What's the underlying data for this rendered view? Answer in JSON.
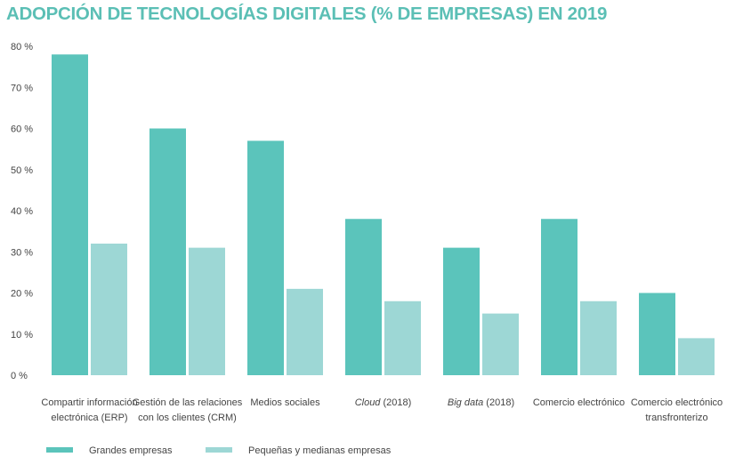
{
  "chart_data": {
    "type": "bar",
    "title": "ADOPCIÓN DE TECNOLOGÍAS DIGITALES (% DE EMPRESAS) EN 2019",
    "xlabel": "",
    "ylabel": "",
    "ylim": [
      0,
      80
    ],
    "yticks": [
      0,
      10,
      20,
      30,
      40,
      50,
      60,
      70,
      80
    ],
    "ytick_labels": [
      "0 %",
      "10 %",
      "20 %",
      "30 %",
      "40 %",
      "50 %",
      "60 %",
      "70 %",
      "80 %"
    ],
    "grid": false,
    "legend_position": "bottom-left",
    "categories": [
      {
        "lines": [
          [
            {
              "t": "Compartir información"
            }
          ],
          [
            {
              "t": "electrónica (ERP)"
            }
          ]
        ]
      },
      {
        "lines": [
          [
            {
              "t": "Gestión de las relaciones"
            }
          ],
          [
            {
              "t": "con los clientes (CRM)"
            }
          ]
        ]
      },
      {
        "lines": [
          [
            {
              "t": "Medios sociales"
            }
          ]
        ]
      },
      {
        "lines": [
          [
            {
              "t": "Cloud",
              "i": true
            },
            {
              "t": " (2018)"
            }
          ]
        ]
      },
      {
        "lines": [
          [
            {
              "t": "Big data",
              "i": true
            },
            {
              "t": " (2018)"
            }
          ]
        ]
      },
      {
        "lines": [
          [
            {
              "t": "Comercio electrónico"
            }
          ]
        ]
      },
      {
        "lines": [
          [
            {
              "t": "Comercio electrónico"
            }
          ],
          [
            {
              "t": "transfronterizo"
            }
          ]
        ]
      }
    ],
    "series": [
      {
        "name": "Grandes empresas",
        "color": "#5bc4bb",
        "values": [
          78,
          60,
          57,
          38,
          31,
          38,
          20
        ]
      },
      {
        "name": "Pequeñas y medianas empresas",
        "color": "#9dd7d5",
        "values": [
          32,
          31,
          21,
          18,
          15,
          18,
          9
        ]
      }
    ]
  }
}
